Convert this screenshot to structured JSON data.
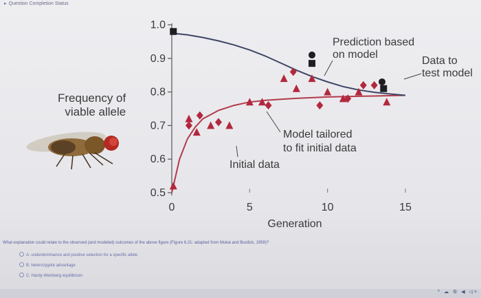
{
  "header": {
    "status_text": "Question Completion Status"
  },
  "figure": {
    "ylabel_line1": "Frequency of",
    "ylabel_line2": "viable allele",
    "xlabel": "Generation",
    "annotation_prediction_line1": "Prediction based",
    "annotation_prediction_line2": "on model",
    "annotation_data_line1": "Data to",
    "annotation_data_line2": "test model",
    "annotation_tailored_line1": "Model tailored",
    "annotation_tailored_line2": "to fit initial data",
    "annotation_initial": "Initial data"
  },
  "chart_data": {
    "type": "scatter",
    "xlabel": "Generation",
    "ylabel": "Frequency of viable allele",
    "xlim": [
      0,
      15
    ],
    "ylim": [
      0.5,
      1.0
    ],
    "x_ticks": [
      0,
      5,
      10,
      15
    ],
    "x_tick_labels": [
      "0",
      "5",
      "10",
      "15"
    ],
    "y_ticks": [
      0.5,
      0.6,
      0.7,
      0.8,
      0.9,
      1.0
    ],
    "y_tick_labels": [
      "0.5",
      "0.6",
      "0.7",
      "0.8",
      "0.9",
      "1.0"
    ],
    "grid": false,
    "curves": [
      {
        "x": [
          0,
          0.5,
          1,
          1.5,
          2,
          3,
          4,
          5,
          6,
          7,
          8,
          9,
          10,
          11,
          12,
          13,
          14,
          15
        ],
        "y": [
          0.5,
          0.6,
          0.66,
          0.695,
          0.72,
          0.745,
          0.76,
          0.77,
          0.775,
          0.778,
          0.781,
          0.783,
          0.785,
          0.786,
          0.787,
          0.788,
          0.789,
          0.79
        ],
        "color": "#b23a4a"
      },
      {
        "x": [
          0,
          1,
          2,
          3,
          4,
          5,
          6,
          7,
          8,
          9,
          10,
          11,
          12,
          13,
          14,
          15
        ],
        "y": [
          0.975,
          0.97,
          0.962,
          0.952,
          0.94,
          0.925,
          0.907,
          0.886,
          0.865,
          0.846,
          0.83,
          0.816,
          0.806,
          0.799,
          0.794,
          0.79
        ],
        "color": "#3e4565"
      }
    ],
    "series": [
      {
        "marker": "triangle",
        "color": "#b3283d",
        "points": [
          [
            0.1,
            0.52
          ],
          [
            1.1,
            0.72
          ],
          [
            1.6,
            0.68
          ],
          [
            2.5,
            0.7
          ],
          [
            3.7,
            0.7
          ],
          [
            5.0,
            0.77
          ],
          [
            5.8,
            0.77
          ],
          [
            7.2,
            0.84
          ],
          [
            8.0,
            0.81
          ],
          [
            9.0,
            0.84
          ],
          [
            10.0,
            0.8
          ],
          [
            11.0,
            0.78
          ],
          [
            12.0,
            0.8
          ],
          [
            13.8,
            0.77
          ]
        ]
      },
      {
        "marker": "diamond",
        "color": "#b3283d",
        "points": [
          [
            1.1,
            0.7
          ],
          [
            1.8,
            0.73
          ],
          [
            3.0,
            0.71
          ],
          [
            6.2,
            0.76
          ],
          [
            7.8,
            0.86
          ],
          [
            9.5,
            0.76
          ],
          [
            11.3,
            0.78
          ],
          [
            12.3,
            0.82
          ],
          [
            13.0,
            0.82
          ]
        ]
      },
      {
        "marker": "circle",
        "color": "#1e1e22",
        "points": [
          [
            9.0,
            0.91
          ],
          [
            13.5,
            0.83
          ]
        ]
      },
      {
        "marker": "square",
        "color": "#1e1e22",
        "points": [
          [
            0.1,
            0.98
          ],
          [
            9.0,
            0.885
          ],
          [
            13.6,
            0.81
          ]
        ]
      }
    ]
  },
  "question": {
    "text": "What explanation could relate to the observed (and modeled) outcomes of the above figure (Figure 6.21: adapted from Mukai and Burdick, 1959)?",
    "options": [
      "A. underdominance and positive selection for a specific allele",
      "B. heterozygote advantage",
      "C. Hardy-Weinberg equilibrium"
    ]
  },
  "taskbar": {
    "tray_text": "^ ☁ ⚙ ◀ ◁×"
  },
  "colors": {
    "model_curve": "#3e4565",
    "fit_curve": "#b23a4a",
    "data_points": "#b3283d",
    "prediction_points": "#1e1e22"
  }
}
